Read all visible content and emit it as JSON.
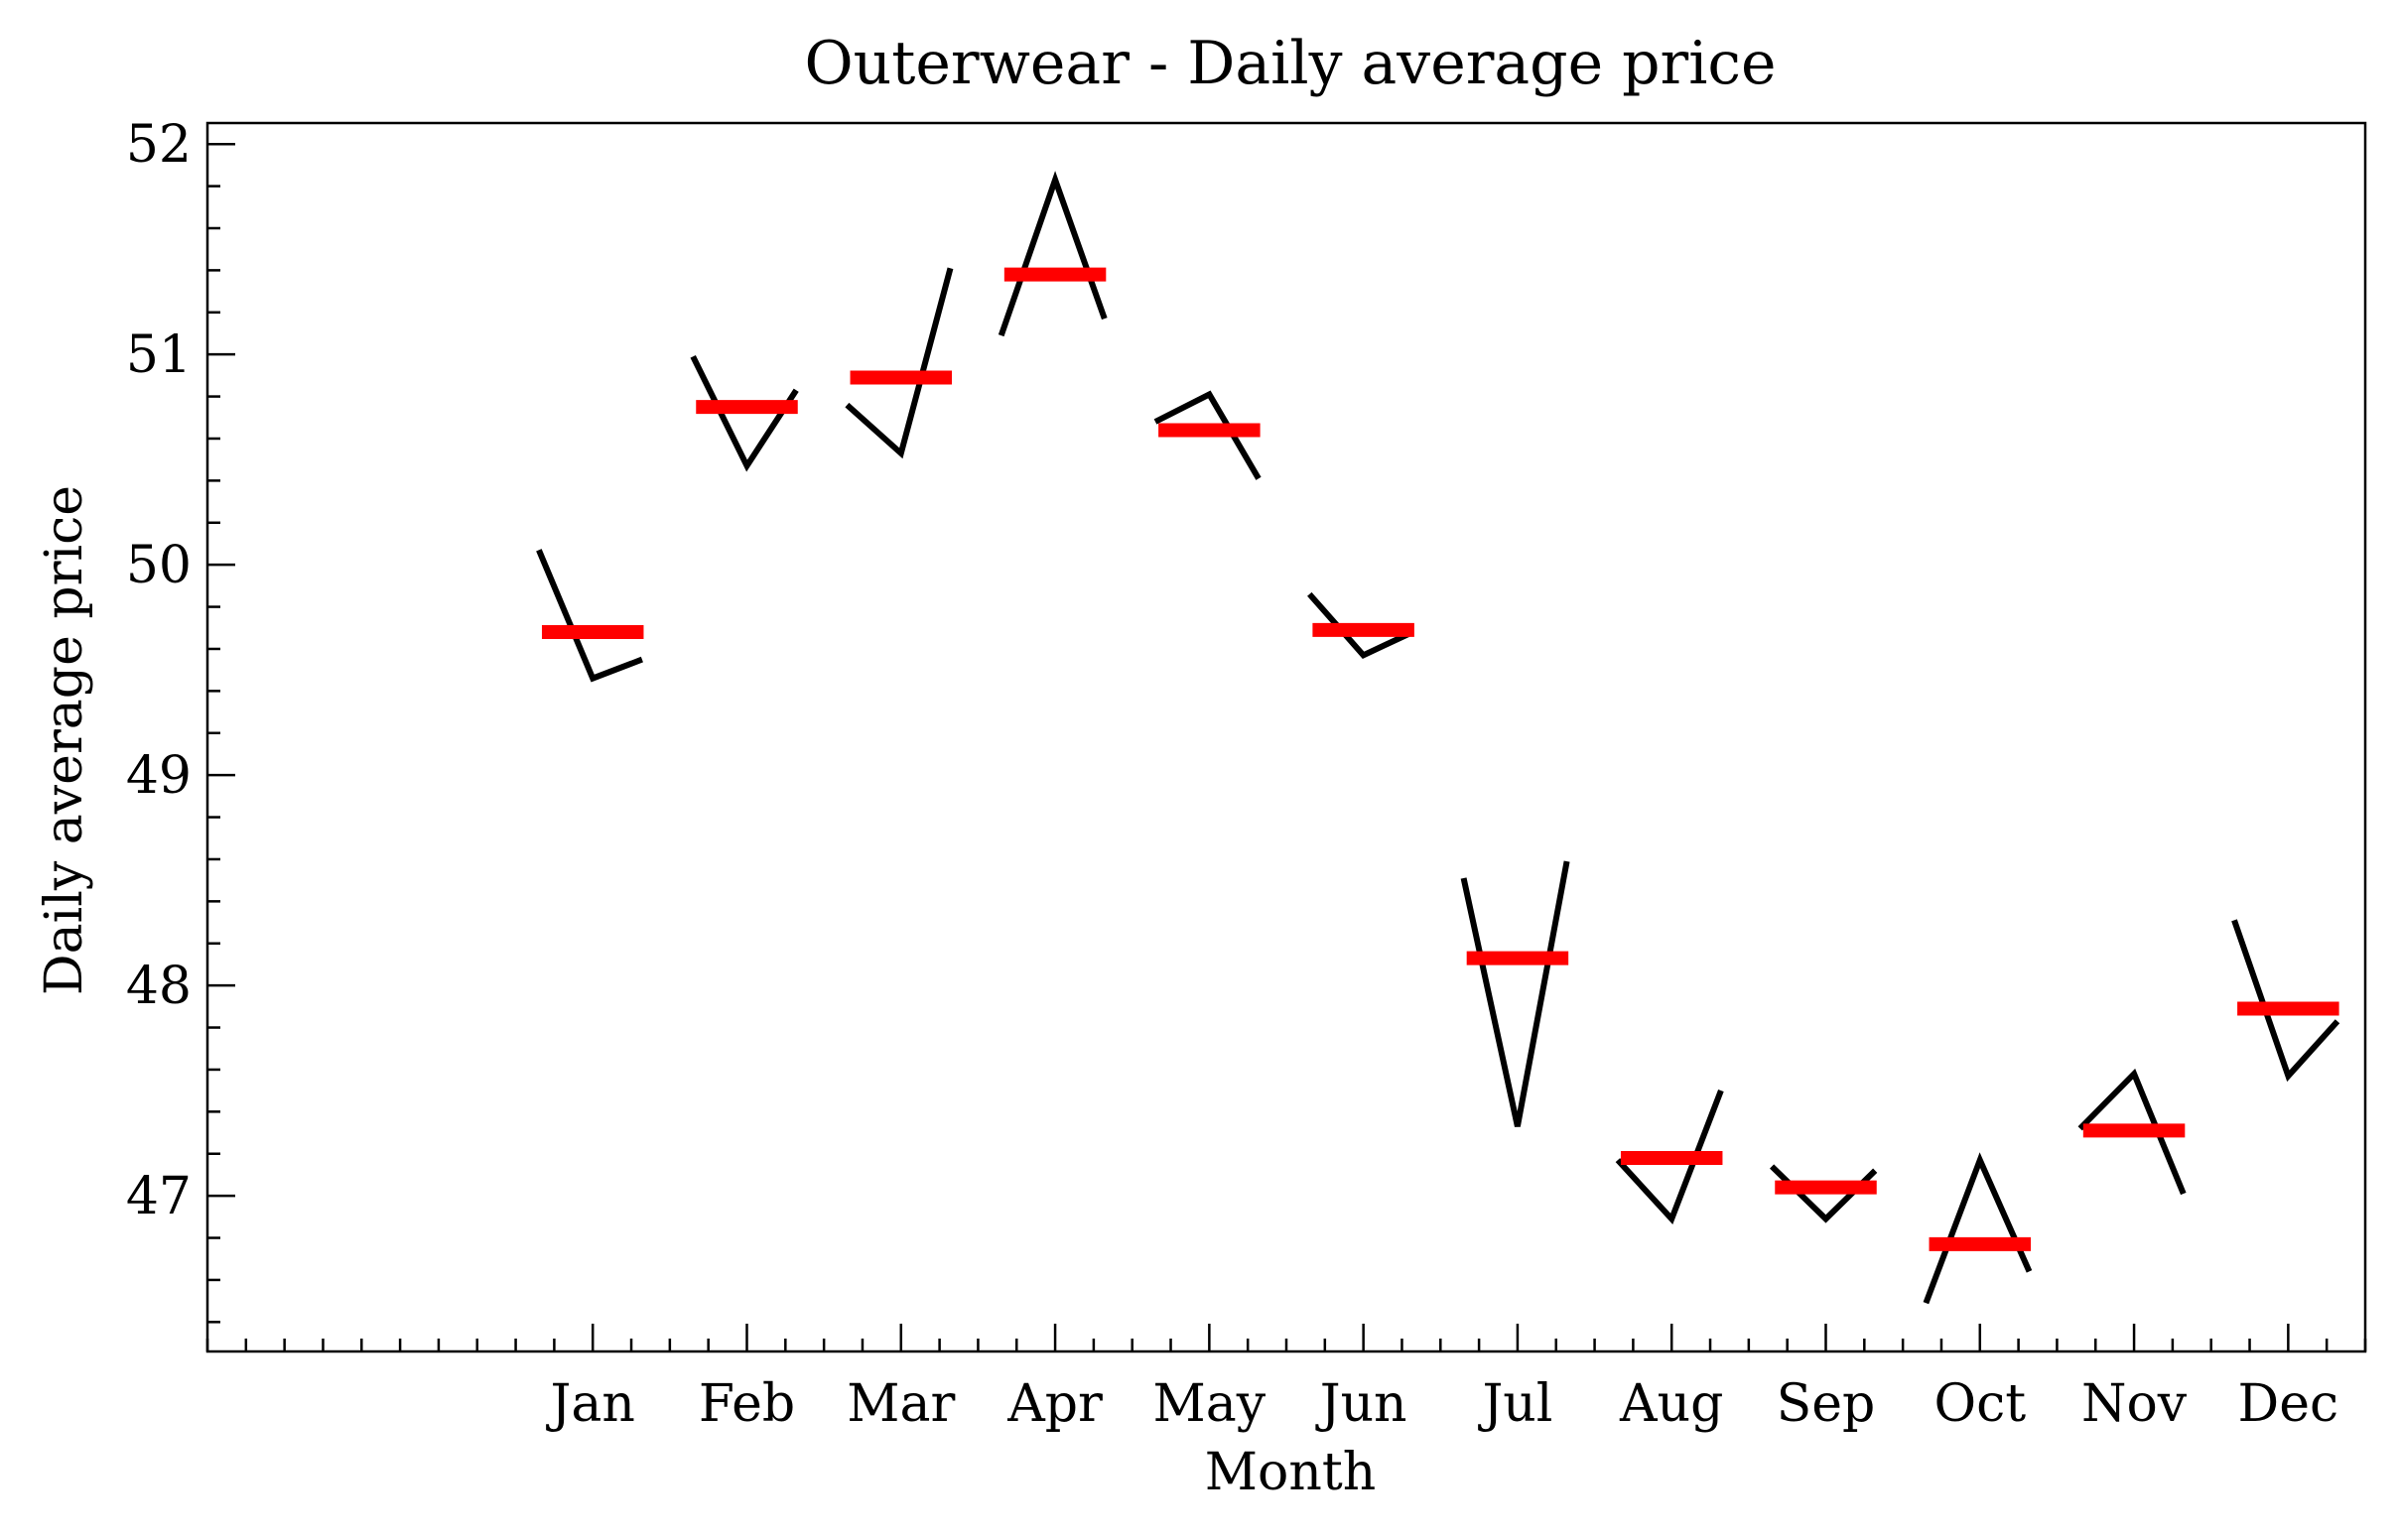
{
  "chart_data": {
    "type": "line",
    "title": "Outerwear - Daily average price",
    "xlabel": "Month",
    "ylabel": "Daily average price",
    "categories": [
      "Jan",
      "Feb",
      "Mar",
      "Apr",
      "May",
      "Jun",
      "Jul",
      "Aug",
      "Sep",
      "Oct",
      "Nov",
      "Dec"
    ],
    "yticks": [
      "47",
      "48",
      "49",
      "50",
      "51",
      "52"
    ],
    "ylim": [
      46.26,
      52.1
    ],
    "grid": false,
    "series": [
      {
        "kind": "daily-pattern",
        "color": "#000000",
        "values": [
          [
            50.07,
            49.46,
            49.55
          ],
          [
            50.99,
            50.47,
            50.83
          ],
          [
            50.76,
            50.53,
            51.41
          ],
          [
            51.09,
            51.83,
            51.17
          ],
          [
            50.68,
            50.81,
            50.41
          ],
          [
            49.86,
            49.57,
            49.68
          ],
          [
            48.51,
            47.33,
            48.59
          ],
          [
            47.17,
            46.89,
            47.5
          ],
          [
            47.14,
            46.89,
            47.12
          ],
          [
            46.49,
            47.17,
            46.64
          ],
          [
            47.32,
            47.58,
            47.01
          ],
          [
            48.31,
            47.57,
            47.83
          ]
        ]
      },
      {
        "kind": "monthly-mean",
        "color": "#ff0000",
        "values": [
          49.68,
          50.75,
          50.89,
          51.38,
          50.64,
          49.69,
          48.13,
          47.18,
          47.04,
          46.77,
          47.31,
          47.89
        ]
      }
    ]
  }
}
